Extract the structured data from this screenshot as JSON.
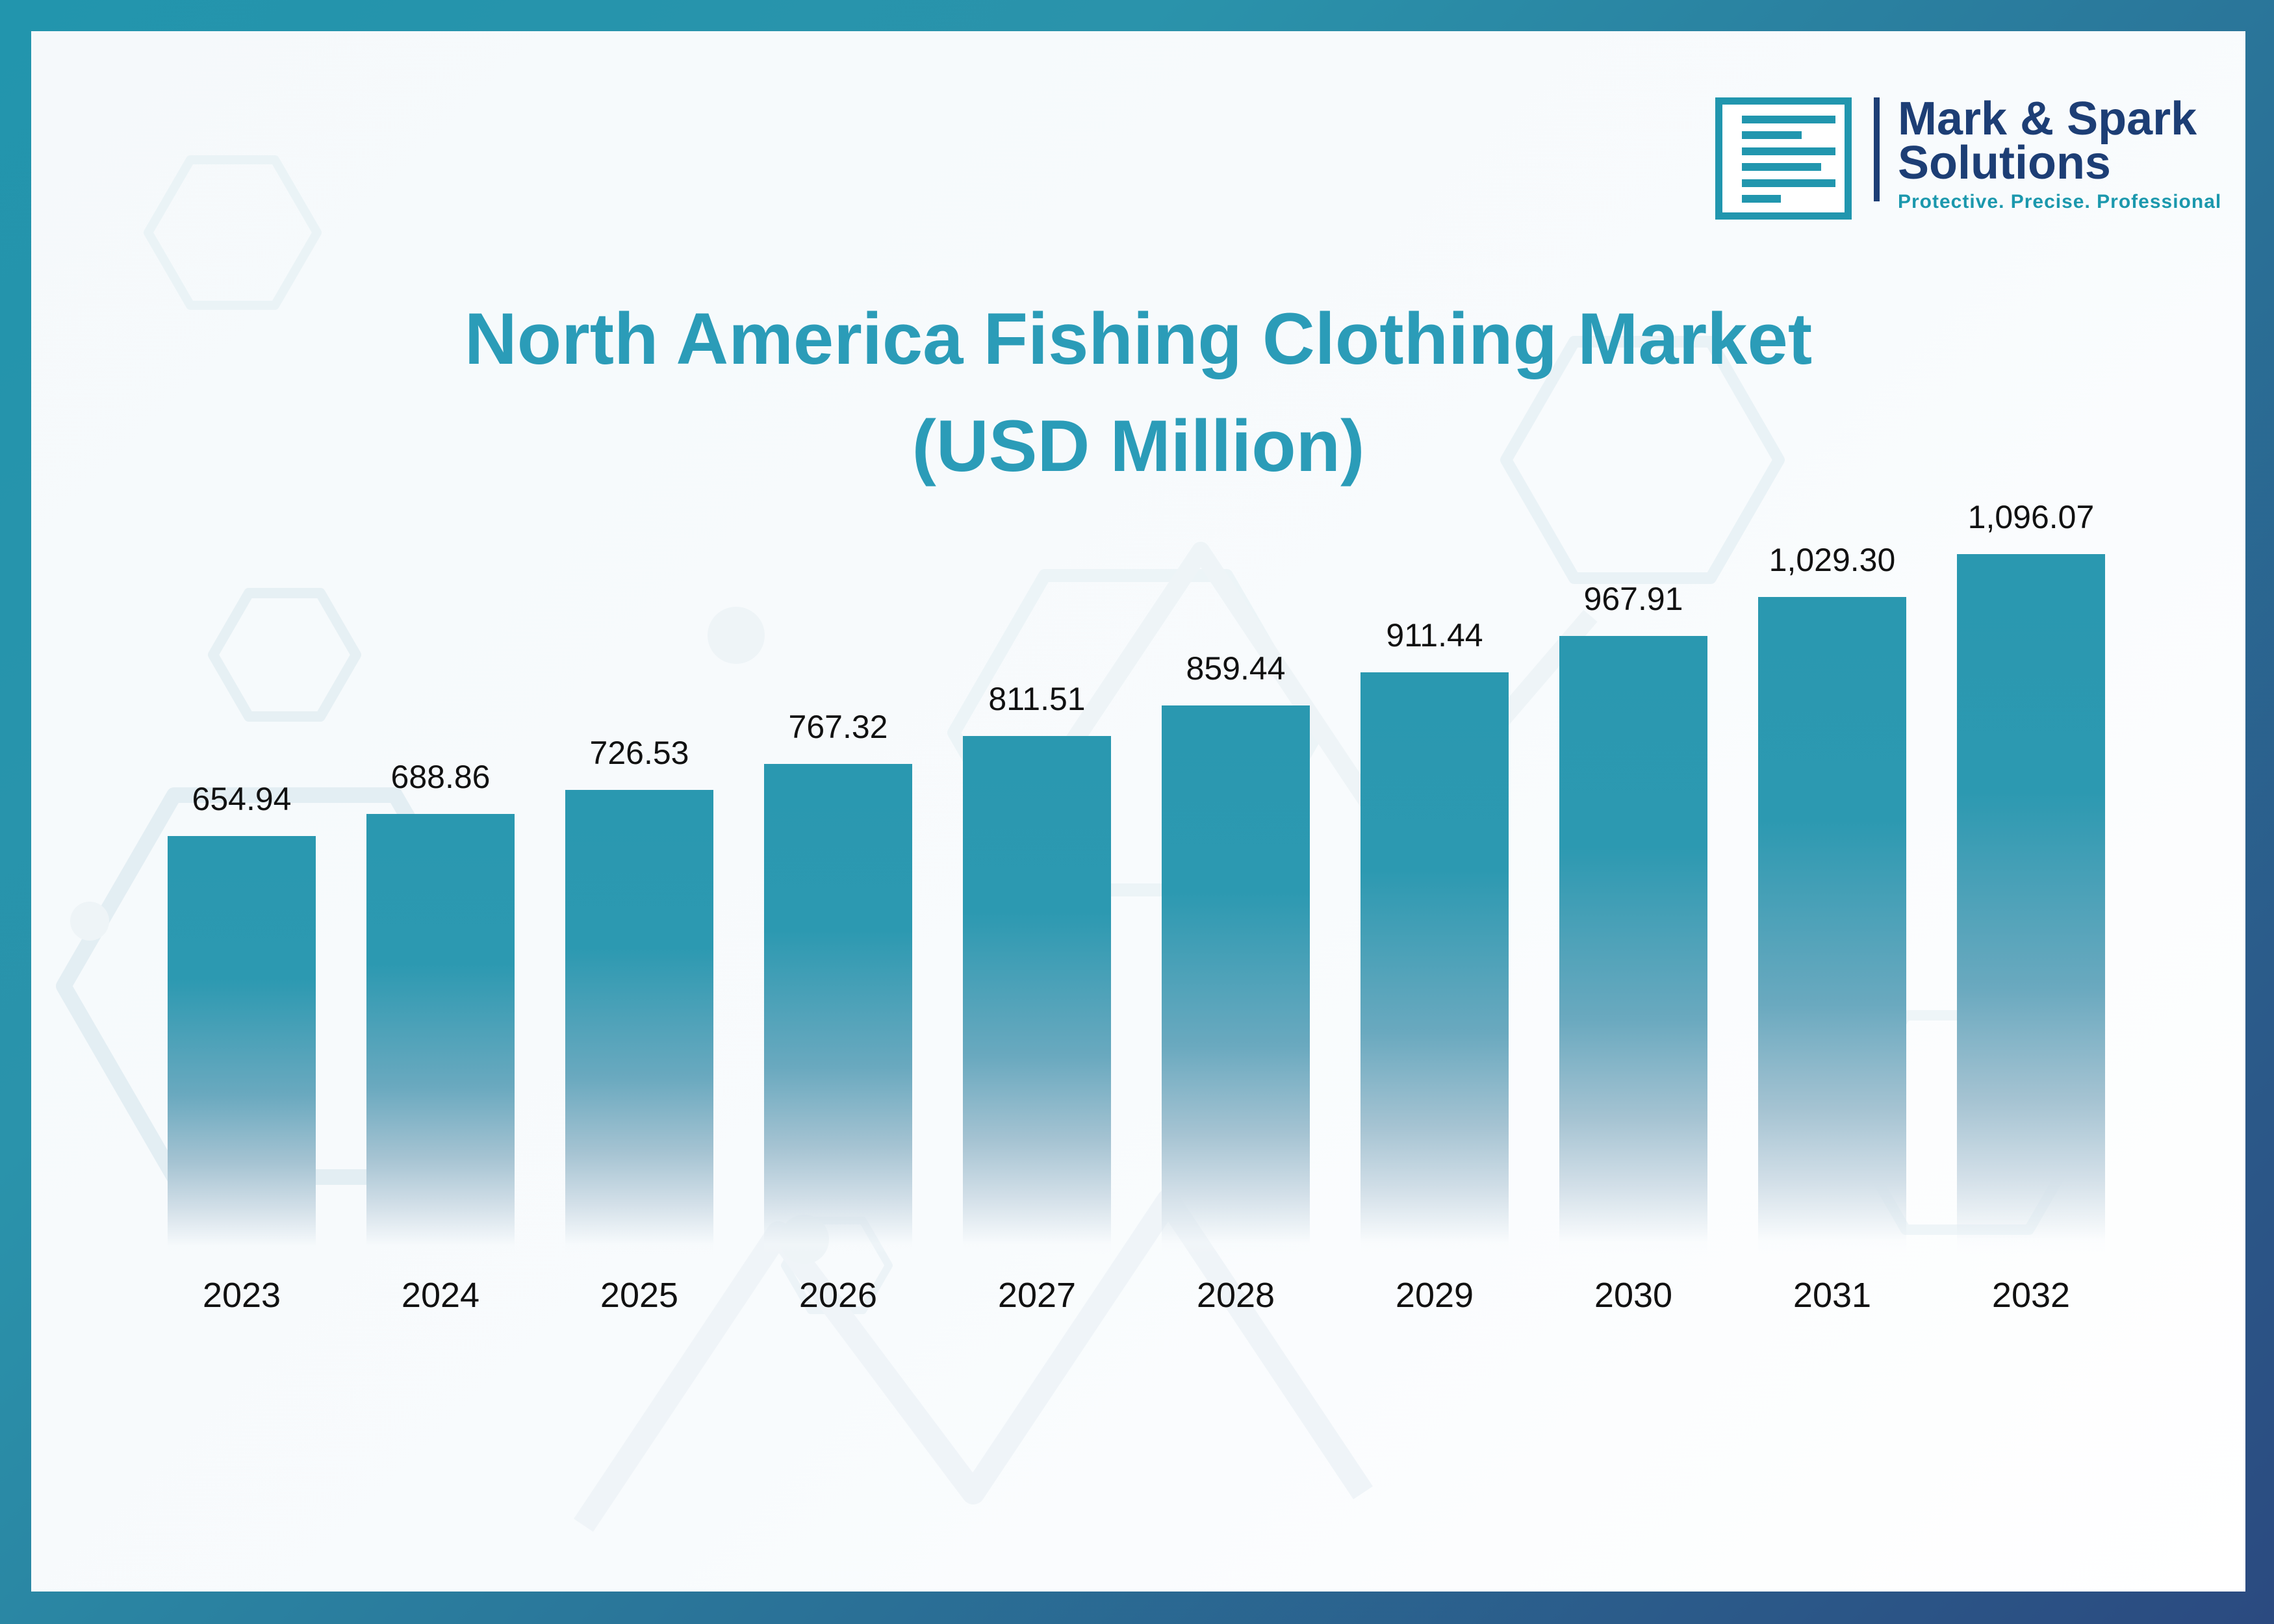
{
  "logo": {
    "icon": "document-icon",
    "brand_line1": "Mark & Spark",
    "brand_line2": "Solutions",
    "tagline": "Protective. Precise. Professional"
  },
  "title": {
    "line1": "North America Fishing Clothing Market",
    "line2": "(USD Million)"
  },
  "chart_data": {
    "type": "bar",
    "title": "North America Fishing Clothing Market (USD Million)",
    "categories": [
      "2023",
      "2024",
      "2025",
      "2026",
      "2027",
      "2028",
      "2029",
      "2030",
      "2031",
      "2032"
    ],
    "values": [
      654.94,
      688.86,
      726.53,
      767.32,
      811.51,
      859.44,
      911.44,
      967.91,
      1029.3,
      1096.07
    ],
    "value_labels": [
      "654.94",
      "688.86",
      "726.53",
      "767.32",
      "811.51",
      "859.44",
      "911.44",
      "967.91",
      "1,029.30",
      "1,096.07"
    ],
    "xlabel": "",
    "ylabel": "",
    "ylim": [
      0,
      1096.07
    ],
    "grid": false,
    "legend": false,
    "bar_color_top": "#2a98b0",
    "bar_fade_bottom": "#f5f9fb",
    "label_color": "#111111"
  },
  "colors": {
    "accent_teal": "#2295ad",
    "accent_navy": "#2b4a80",
    "title_teal": "#2b9cb8",
    "logo_navy": "#1d3e75",
    "logo_teal": "#1b98ad",
    "card_background": "#f7fafc"
  }
}
